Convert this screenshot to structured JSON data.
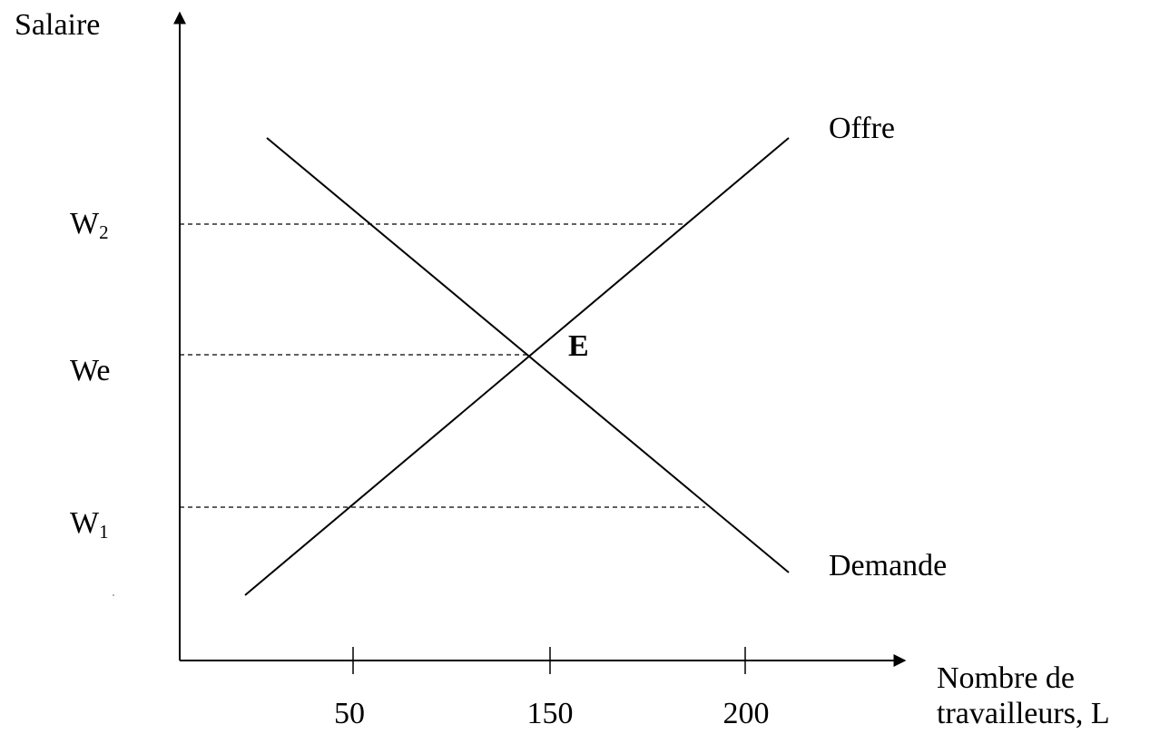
{
  "axes": {
    "y_label": "Salaire",
    "x_label_line1": "Nombre de",
    "x_label_line2": "travailleurs, L",
    "x_ticks": [
      "50",
      "150",
      "200"
    ]
  },
  "wage_levels": {
    "w2": {
      "base": "W",
      "sub": "2"
    },
    "we": {
      "text": "We"
    },
    "w1": {
      "base": "W",
      "sub": "1"
    }
  },
  "curves": {
    "supply": "Offre",
    "demand": "Demande"
  },
  "equilibrium": {
    "label": "E",
    "color": "#c00000"
  }
}
